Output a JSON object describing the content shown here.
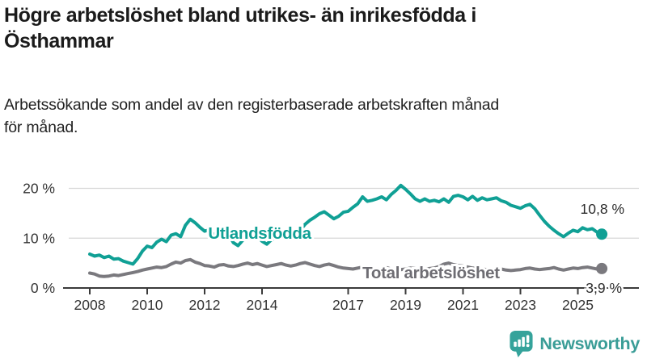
{
  "header": {
    "title": "Högre arbetslöshet bland utrikes- än inrikesfödda i\nÖsthammar",
    "subtitle": "Arbetssökande som andel av den registerbaserade arbetskraften månad\nför månad."
  },
  "branding": {
    "wordmark": "Newsworthy",
    "icon": "newsworthy-barchart-speech-bubble",
    "accent_color": "#35a39b"
  },
  "chart_data": {
    "type": "line",
    "unit": "%",
    "grid": "horizontal",
    "x_start": 2008,
    "x_step_months": 2,
    "xlim": [
      2007.3,
      2026.2
    ],
    "ylim": [
      0,
      22
    ],
    "yticks": [
      {
        "value": 0,
        "label": "0 %"
      },
      {
        "value": 10,
        "label": "10 %"
      },
      {
        "value": 20,
        "label": "20 %"
      }
    ],
    "xticks": [
      {
        "value": 2008,
        "label": "2008"
      },
      {
        "value": 2010,
        "label": "2010"
      },
      {
        "value": 2012,
        "label": "2012"
      },
      {
        "value": 2014,
        "label": "2014"
      },
      {
        "value": 2017,
        "label": "2017"
      },
      {
        "value": 2019,
        "label": "2019"
      },
      {
        "value": 2021,
        "label": "2021"
      },
      {
        "value": 2023,
        "label": "2023"
      },
      {
        "value": 2025,
        "label": "2025"
      }
    ],
    "series": [
      {
        "name": "Utlandsfödda",
        "color": "#10a095",
        "end_label": "10,8 %",
        "end_value": 10.8,
        "values": [
          6.8,
          6.4,
          6.6,
          6.1,
          6.4,
          5.8,
          5.9,
          5.4,
          5.1,
          4.8,
          5.9,
          7.4,
          8.4,
          8.1,
          9.2,
          9.8,
          9.3,
          10.6,
          10.9,
          10.3,
          12.6,
          13.8,
          13.1,
          12.2,
          11.4,
          11.7,
          10.7,
          11.1,
          10.4,
          10.8,
          9.1,
          8.5,
          9.6,
          10.2,
          9.8,
          10.3,
          9.4,
          8.8,
          9.7,
          10.1,
          10.4,
          10.0,
          10.3,
          10.8,
          11.6,
          12.8,
          13.6,
          14.2,
          14.9,
          15.3,
          14.6,
          13.9,
          14.4,
          15.2,
          15.4,
          16.2,
          16.9,
          18.3,
          17.4,
          17.6,
          17.9,
          18.3,
          17.7,
          18.8,
          19.6,
          20.6,
          19.8,
          18.9,
          17.9,
          17.4,
          17.9,
          17.4,
          17.6,
          17.3,
          17.9,
          17.2,
          18.4,
          18.6,
          18.3,
          17.7,
          18.4,
          17.6,
          18.1,
          17.7,
          17.9,
          18.1,
          17.5,
          17.2,
          16.6,
          16.3,
          16.0,
          16.5,
          16.8,
          15.9,
          14.6,
          13.4,
          12.4,
          11.6,
          10.9,
          10.3,
          11.0,
          11.6,
          11.3,
          12.1,
          11.7,
          11.9,
          11.2,
          10.8
        ]
      },
      {
        "name": "Total arbetslöshet",
        "color": "#7a797e",
        "end_label": "3,9 %",
        "end_value": 3.9,
        "values": [
          3.0,
          2.8,
          2.4,
          2.3,
          2.4,
          2.6,
          2.5,
          2.7,
          2.9,
          3.1,
          3.3,
          3.6,
          3.8,
          4.0,
          4.2,
          4.1,
          4.3,
          4.8,
          5.2,
          5.0,
          5.5,
          5.7,
          5.2,
          4.9,
          4.5,
          4.4,
          4.2,
          4.6,
          4.7,
          4.4,
          4.3,
          4.5,
          4.8,
          5.0,
          4.7,
          4.9,
          4.6,
          4.3,
          4.5,
          4.7,
          4.9,
          4.6,
          4.4,
          4.6,
          4.9,
          5.1,
          4.8,
          4.5,
          4.3,
          4.6,
          4.8,
          4.5,
          4.2,
          4.0,
          3.9,
          3.8,
          4.0,
          4.2,
          4.0,
          3.8,
          3.7,
          3.9,
          4.1,
          3.8,
          3.6,
          3.7,
          3.8,
          4.0,
          3.9,
          3.7,
          3.8,
          3.9,
          4.0,
          4.3,
          4.8,
          5.0,
          4.7,
          4.5,
          4.4,
          4.2,
          4.0,
          3.9,
          3.8,
          3.7,
          3.6,
          3.7,
          3.8,
          3.6,
          3.5,
          3.6,
          3.7,
          3.9,
          4.0,
          3.8,
          3.7,
          3.8,
          3.9,
          4.1,
          3.8,
          3.6,
          3.8,
          4.0,
          3.9,
          4.1,
          4.2,
          4.0,
          3.8,
          3.9
        ]
      }
    ]
  }
}
